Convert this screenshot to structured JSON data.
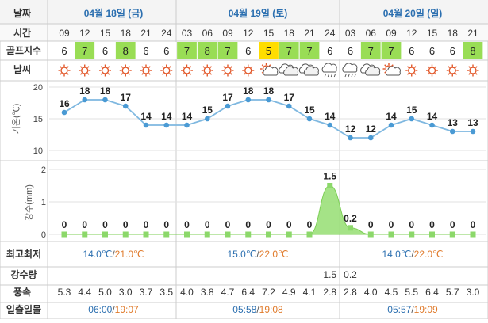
{
  "row_labels": {
    "date": "날짜",
    "time": "시간",
    "golf": "골프지수",
    "weather": "날씨",
    "temp_axis": "기온(℃)",
    "precip_axis": "강수(mm)",
    "minmax": "최고최저",
    "precip": "강수량",
    "wind": "풍속",
    "sun": "일출일몰"
  },
  "days": [
    {
      "label": "04월 18일 (금)",
      "minmax_low": "14.0℃",
      "minmax_sep": "/",
      "minmax_high": "21.0℃",
      "sunrise": "06:00",
      "sun_sep": "/",
      "sunset": "19:07"
    },
    {
      "label": "04월 19일 (토)",
      "minmax_low": "15.0℃",
      "minmax_sep": "/",
      "minmax_high": "22.0℃",
      "sunrise": "05:58",
      "sun_sep": "/",
      "sunset": "19:08"
    },
    {
      "label": "04월 20일 (일)",
      "minmax_low": "14.0℃",
      "minmax_sep": "/",
      "minmax_high": "22.0℃",
      "sunrise": "05:57",
      "sun_sep": "/",
      "sunset": "19:09"
    }
  ],
  "hours": [
    "09",
    "12",
    "15",
    "18",
    "21",
    "24",
    "03",
    "06",
    "09",
    "12",
    "15",
    "18",
    "21",
    "24",
    "03",
    "06",
    "09",
    "12",
    "15",
    "18",
    "21"
  ],
  "golf_index": [
    "6",
    "7",
    "6",
    "8",
    "6",
    "6",
    "7",
    "8",
    "7",
    "6",
    "5",
    "7",
    "7",
    "6",
    "6",
    "7",
    "7",
    "6",
    "6",
    "6",
    "8"
  ],
  "weather_icons": [
    "sun-icon",
    "sun-icon",
    "sun-icon",
    "sun-icon",
    "sun-icon",
    "sun-icon",
    "sun-icon",
    "sun-icon",
    "sun-icon",
    "sun-icon",
    "partly-cloudy-icon",
    "cloudy-icon",
    "cloudy-icon",
    "rain-icon",
    "rain-icon",
    "cloudy-icon",
    "partly-cloudy-icon",
    "sun-icon",
    "sun-icon",
    "sun-icon",
    "sun-icon"
  ],
  "precip_amounts": [
    "",
    "",
    "",
    "",
    "",
    "",
    "",
    "",
    "",
    "",
    "",
    "",
    "",
    "1.5",
    "0.2",
    "",
    "",
    "",
    "",
    "",
    ""
  ],
  "wind_speeds": [
    "5.3",
    "4.4",
    "5.0",
    "3.0",
    "3.7",
    "3.5",
    "4.0",
    "3.8",
    "4.7",
    "6.4",
    "7.2",
    "4.9",
    "4.1",
    "2.8",
    "2.8",
    "4.0",
    "4.5",
    "5.5",
    "6.4",
    "5.7",
    "3.0"
  ],
  "colors": {
    "golf_green": "#99dd55",
    "golf_yellow": "#ffdd00",
    "golf_white": "#ffffff",
    "temp_line": "#7fb8e0",
    "temp_marker": "#4a9ad4",
    "precip_fill": "#9be07a",
    "precip_marker": "#8cd86a",
    "header_text": "#2b6fb0",
    "high_temp": "#e07a2a",
    "sunset": "#e07a2a",
    "grid": "#e2e2e2",
    "border": "#cccccc"
  },
  "chart_data": [
    {
      "type": "line",
      "ylabel": "기온(℃)",
      "ylim": [
        10,
        20
      ],
      "yticks": [
        10,
        15,
        20
      ],
      "categories": [
        "09",
        "12",
        "15",
        "18",
        "21",
        "24",
        "03",
        "06",
        "09",
        "12",
        "15",
        "18",
        "21",
        "24",
        "03",
        "06",
        "09",
        "12",
        "15",
        "18",
        "21"
      ],
      "values": [
        16,
        18,
        18,
        17,
        14,
        14,
        14,
        15,
        17,
        18,
        18,
        17,
        15,
        14,
        12,
        12,
        14,
        15,
        14,
        13,
        13
      ],
      "grid": true
    },
    {
      "type": "area",
      "ylabel": "강수(mm)",
      "ylim": [
        0,
        2
      ],
      "yticks": [
        0,
        1,
        2
      ],
      "categories": [
        "09",
        "12",
        "15",
        "18",
        "21",
        "24",
        "03",
        "06",
        "09",
        "12",
        "15",
        "18",
        "21",
        "24",
        "03",
        "06",
        "09",
        "12",
        "15",
        "18",
        "21"
      ],
      "values": [
        0,
        0,
        0,
        0,
        0,
        0,
        0,
        0,
        0,
        0,
        0,
        0,
        0,
        1.5,
        0.2,
        0,
        0,
        0,
        0,
        0,
        0
      ],
      "grid": true
    }
  ]
}
